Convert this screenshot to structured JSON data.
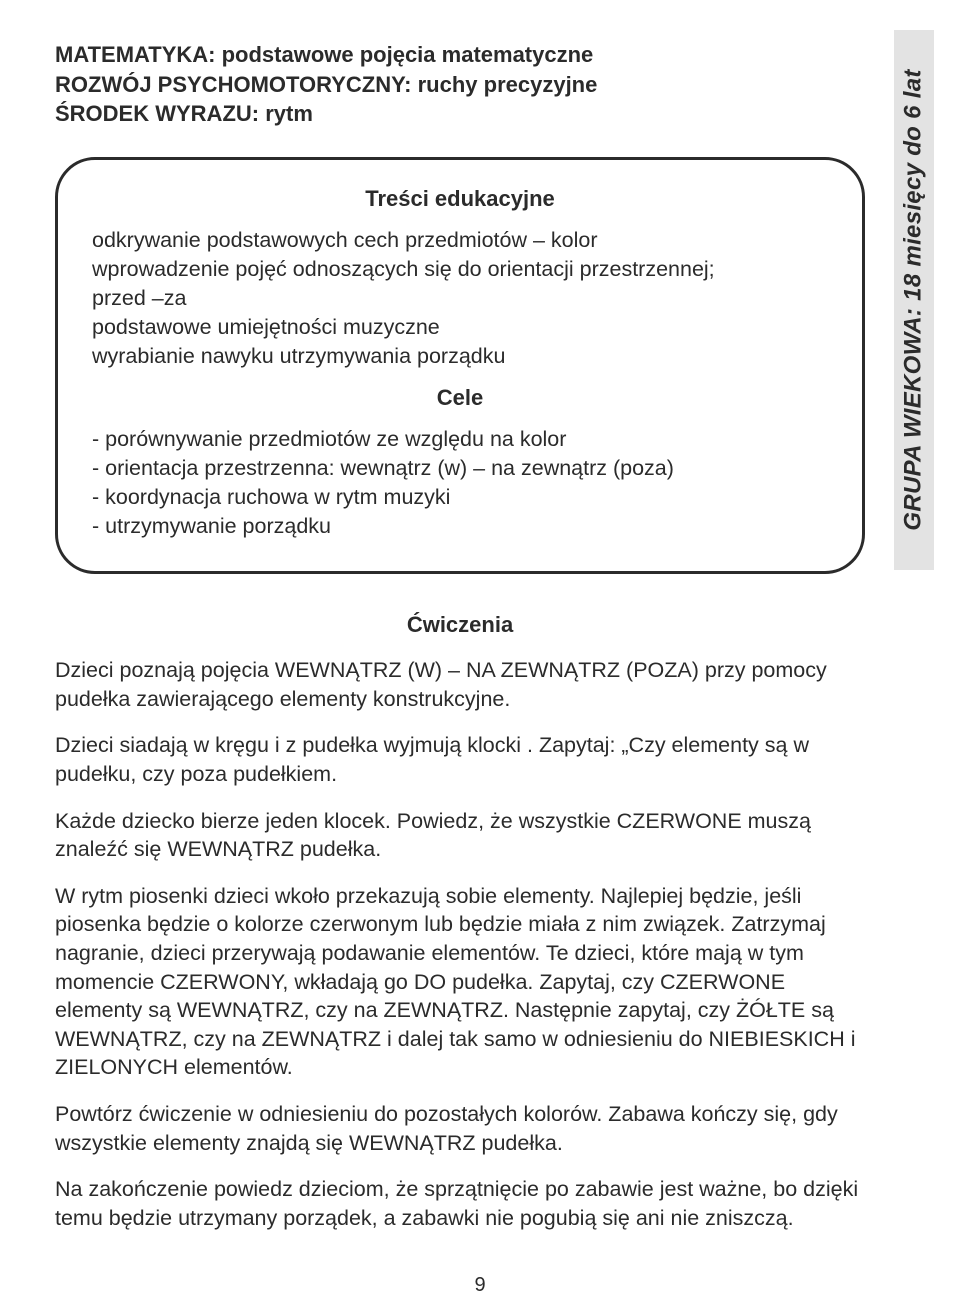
{
  "header": {
    "line1": "MATEMATYKA: podstawowe pojęcia matematyczne",
    "line2": "ROZWÓJ PSYCHOMOTORYCZNY: ruchy precyzyjne",
    "line3": "ŚRODEK WYRAZU: rytm"
  },
  "box": {
    "heading1": "Treści edukacyjne",
    "content1": "odkrywanie podstawowych cech przedmiotów – kolor\nwprowadzenie pojęć odnoszących się do orientacji przestrzennej;\nprzed –za\npodstawowe umiejętności muzyczne\nwyrabianie nawyku utrzymywania porządku",
    "heading2": "Cele",
    "list": [
      "- porównywanie przedmiotów ze względu na kolor",
      "- orientacja przestrzenna: wewnątrz (w) – na zewnątrz (poza)",
      "- koordynacja ruchowa w rytm muzyki",
      "- utrzymywanie porządku"
    ]
  },
  "exercises": {
    "heading": "Ćwiczenia",
    "paragraphs": [
      "Dzieci poznają pojęcia WEWNĄTRZ (W) – NA ZEWNĄTRZ (POZA) przy pomocy pudełka zawierającego elementy konstrukcyjne.",
      "Dzieci siadają w kręgu i z pudełka wyjmują klocki . Zapytaj: „Czy elementy są w pudełku, czy poza pudełkiem.",
      "Każde dziecko bierze jeden klocek. Powiedz, że wszystkie CZERWONE muszą znaleźć się WEWNĄTRZ pudełka.",
      "W rytm piosenki dzieci wkoło przekazują sobie elementy. Najlepiej będzie, jeśli piosenka będzie o kolorze czerwonym lub będzie miała z nim związek. Zatrzymaj nagranie, dzieci przerywają podawanie elementów. Te dzieci, które mają w tym momencie CZERWONY, wkładają go DO pudełka. Zapytaj, czy CZERWONE elementy są WEWNĄTRZ, czy na ZEWNĄTRZ. Następnie zapytaj, czy ŻÓŁTE są WEWNĄTRZ, czy na ZEWNĄTRZ i dalej tak samo w odniesieniu do NIEBIESKICH i ZIELONYCH elementów.",
      "Powtórz ćwiczenie w odniesieniu do pozostałych kolorów. Zabawa kończy się, gdy wszystkie elementy znajdą się WEWNĄTRZ pudełka.",
      "Na zakończenie powiedz dzieciom, że sprzątnięcie po zabawie jest ważne, bo dzięki temu będzie utrzymany porządek, a zabawki nie pogubią się ani nie zniszczą."
    ]
  },
  "sidebar": "GRUPA WIEKOWA: 18 miesięcy do 6 lat",
  "page_number": "9"
}
